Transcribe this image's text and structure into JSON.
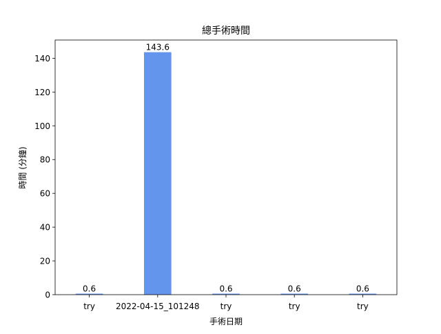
{
  "chart_data": {
    "type": "bar",
    "title": "總手術時間",
    "xlabel": "手術日期",
    "ylabel": "時間 (分鐘)",
    "categories": [
      "try",
      "2022-04-15_101248",
      "try",
      "try",
      "try"
    ],
    "values": [
      0.6,
      143.6,
      0.6,
      0.6,
      0.6
    ],
    "value_labels": [
      "0.6",
      "143.6",
      "0.6",
      "0.6",
      "0.6"
    ],
    "ylim": [
      0,
      150.8
    ],
    "yticks": [
      0,
      20,
      40,
      60,
      80,
      100,
      120,
      140
    ],
    "grid": false,
    "legend": "none",
    "bar_color": "#6495ed"
  }
}
